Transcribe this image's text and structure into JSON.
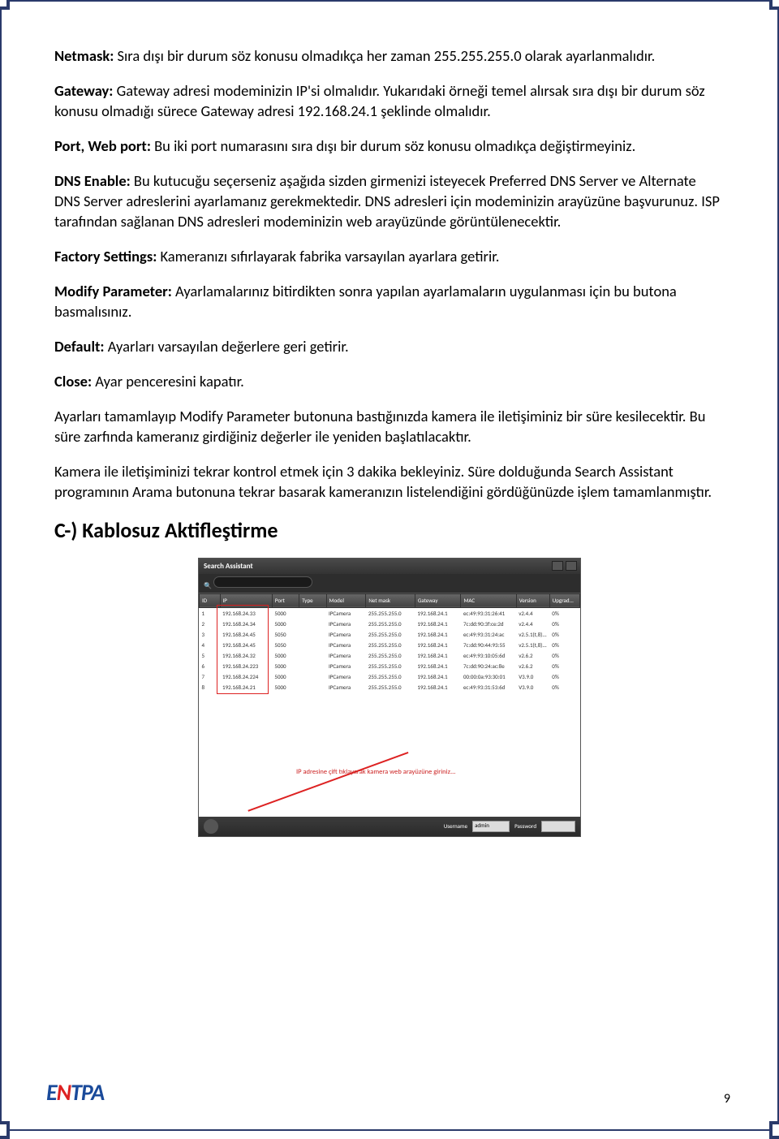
{
  "paragraphs": {
    "netmask_label": "Netmask:",
    "netmask_text": " Sıra dışı bir durum söz konusu olmadıkça her zaman 255.255.255.0 olarak ayarlanmalıdır.",
    "gateway_label": "Gateway:",
    "gateway_text": " Gateway adresi modeminizin IP'si olmalıdır. Yukarıdaki örneği temel alırsak sıra dışı bir durum söz konusu olmadığı sürece Gateway adresi 192.168.24.1 şeklinde olmalıdır.",
    "port_label": "Port, Web port:",
    "port_text": " Bu iki port numarasını sıra dışı bir durum söz konusu olmadıkça değiştirmeyiniz.",
    "dns_label": "DNS Enable:",
    "dns_text": " Bu kutucuğu seçerseniz aşağıda sizden girmenizi isteyecek Preferred DNS Server ve Alternate DNS Server adreslerini ayarlamanız gerekmektedir. DNS adresleri için modeminizin arayüzüne başvurunuz. ISP tarafından sağlanan DNS adresleri modeminizin web arayüzünde görüntülenecektir.",
    "factory_label": "Factory Settings:",
    "factory_text": " Kameranızı sıfırlayarak fabrika varsayılan ayarlara getirir.",
    "modify_label": "Modify Parameter:",
    "modify_text": " Ayarlamalarınız bitirdikten sonra yapılan ayarlamaların uygulanması için bu butona basmalısınız.",
    "default_label": "Default:",
    "default_text": " Ayarları varsayılan değerlere geri getirir.",
    "close_label": "Close:",
    "close_text": " Ayar penceresini kapatır.",
    "para_after1": "Ayarları tamamlayıp Modify Parameter butonuna bastığınızda kamera ile iletişiminiz bir süre kesilecektir. Bu süre zarfında kameranız girdiğiniz değerler ile yeniden başlatılacaktır.",
    "para_after2": "Kamera ile iletişiminizi tekrar kontrol etmek için 3 dakika bekleyiniz. Süre dolduğunda Search Assistant programının Arama butonuna tekrar basarak kameranızın listelendiğini gördüğünüzde işlem tamamlanmıştır.",
    "heading_c": "C-) Kablosuz Aktifleştirme"
  },
  "app": {
    "title": "Search Assistant",
    "columns": [
      "ID",
      "IP",
      "Port",
      "Type",
      "Model",
      "Net mask",
      "Gateway",
      "MAC",
      "Version",
      "Upgrad..."
    ],
    "col_widths": [
      "5%",
      "15%",
      "7%",
      "7%",
      "11%",
      "14%",
      "13%",
      "16%",
      "9%",
      "8%"
    ],
    "rows": [
      [
        "1",
        "192.168.24.33",
        "5000",
        "",
        "IPCamera",
        "255.255.255.0",
        "192.168.24.1",
        "ec:49:93:31:26:41",
        "v2.4.4",
        "0%"
      ],
      [
        "2",
        "192.168.24.34",
        "5000",
        "",
        "IPCamera",
        "255.255.255.0",
        "192.168.24.1",
        "7c:dd:90:3f:ce:2d",
        "v2.4.4",
        "0%"
      ],
      [
        "3",
        "192.168.24.45",
        "5050",
        "",
        "IPCamera",
        "255.255.255.0",
        "192.168.24.1",
        "ec:49:93:31:24:ac",
        "v2.5.1(t,8)...",
        "0%"
      ],
      [
        "4",
        "192.168.24.45",
        "5050",
        "",
        "IPCamera",
        "255.255.255.0",
        "192.168.24.1",
        "7c:dd:90:44:93:55",
        "v2.5.1(t,8)...",
        "0%"
      ],
      [
        "5",
        "192.168.24.32",
        "5000",
        "",
        "IPCamera",
        "255.255.255.0",
        "192.168.24.1",
        "ec:49:93:10:05:6d",
        "v2.6.2",
        "0%"
      ],
      [
        "6",
        "192.168.24.223",
        "5000",
        "",
        "IPCamera",
        "255.255.255.0",
        "192.168.24.1",
        "7c:dd:90:24:ac:8e",
        "v2.6.2",
        "0%"
      ],
      [
        "7",
        "192.168.24.224",
        "5000",
        "",
        "IPCamera",
        "255.255.255.0",
        "192.168.24.1",
        "00:00:0a:93:30:01",
        "V3.9.0",
        "0%"
      ],
      [
        "8",
        "192.168.24.21",
        "5000",
        "",
        "IPCamera",
        "255.255.255.0",
        "192.168.24.1",
        "ec:49:93:31:53:6d",
        "V3.9.0",
        "0%"
      ]
    ],
    "annotation": "IP adresine çift tıklayarak kamera web arayüzüne giriniz...",
    "footer": {
      "user_label": "Username",
      "user_value": "admin",
      "pass_label": "Password"
    }
  },
  "logo_text": "E",
  "logo_slash": "N",
  "logo_rest": "TPA",
  "page_number": "9"
}
